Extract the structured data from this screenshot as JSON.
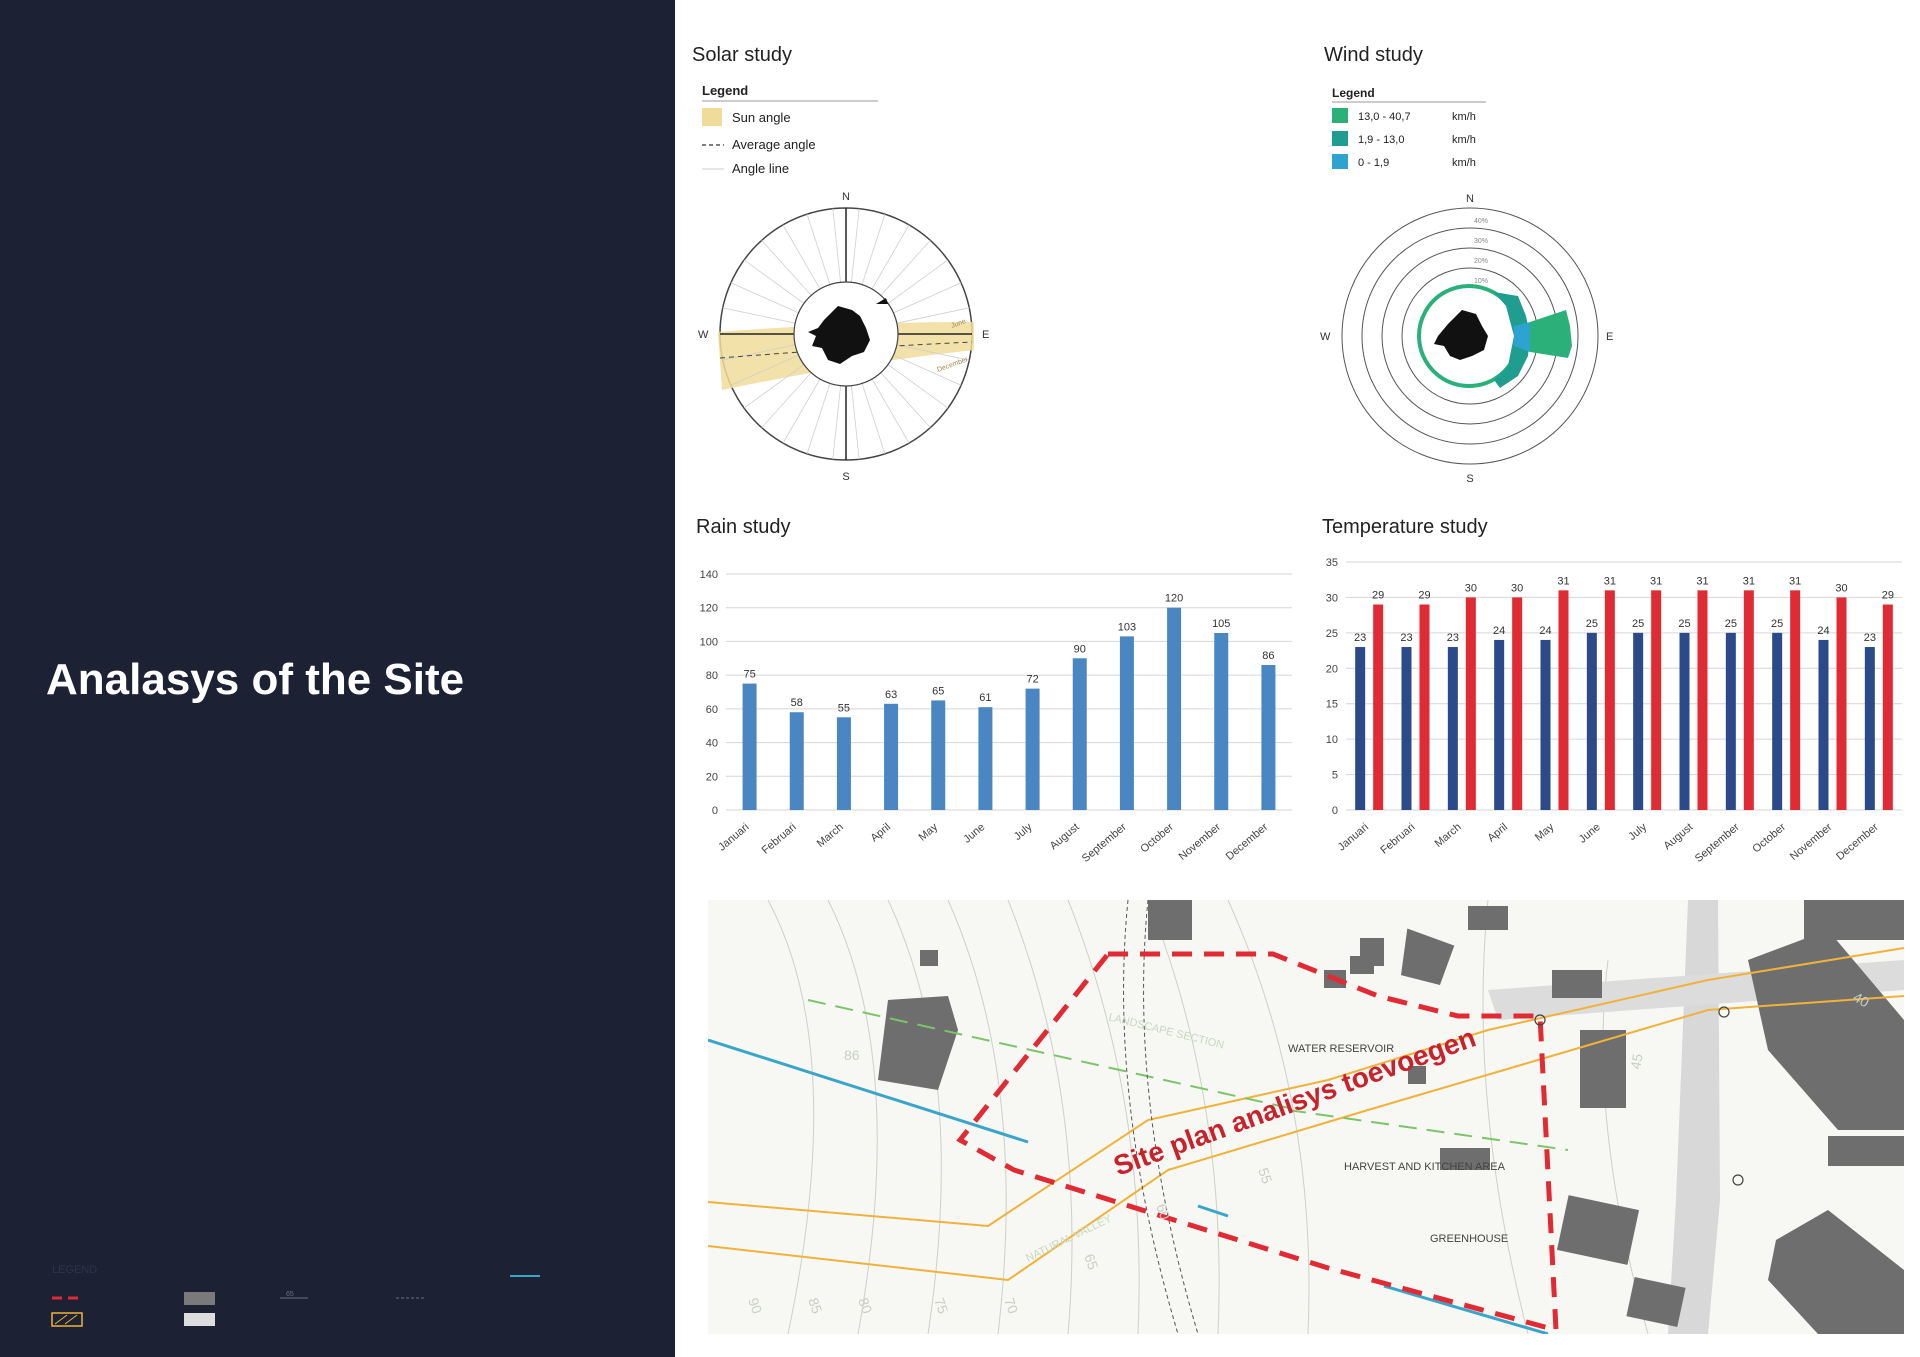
{
  "page": {
    "title": "Analasys of the Site"
  },
  "bottom_legend": {
    "title": "LEGEND",
    "tiny_label": "65"
  },
  "colors": {
    "panel": "#1c2133",
    "rain_bar": "#4a86c2",
    "temp_min": "#2c4a8a",
    "temp_max": "#e02a34",
    "sun_band": "#f0dc9a",
    "wind_high": "#2bb07a",
    "wind_mid": "#1f9e8f",
    "wind_low": "#2ea3cf",
    "site_boundary": "#e02a34",
    "contour_road": "#f0b23a",
    "water_line": "#3aa5c8"
  },
  "solar": {
    "title": "Solar study",
    "legend_title": "Legend",
    "legend": [
      "Sun angle",
      "Average angle",
      "Angle line"
    ],
    "compass": {
      "n": "N",
      "e": "E",
      "s": "S",
      "w": "W"
    },
    "band_labels": [
      "June",
      "December"
    ]
  },
  "wind": {
    "title": "Wind study",
    "legend_title": "Legend",
    "legend": [
      {
        "range": "13,0 - 40,7",
        "unit": "km/h",
        "color_key": "wind_high"
      },
      {
        "range": "1,9 - 13,0",
        "unit": "km/h",
        "color_key": "wind_mid"
      },
      {
        "range": "0 - 1,9",
        "unit": "km/h",
        "color_key": "wind_low"
      }
    ],
    "rings": [
      "40%",
      "30%",
      "20%",
      "10%"
    ],
    "compass": {
      "n": "N",
      "e": "E",
      "s": "S",
      "w": "W"
    }
  },
  "site_plan": {
    "title": "Site plan analisys toevoegen",
    "labels": [
      "WATER RESERVOIR",
      "HARVEST AND KITCHEN AREA",
      "GREENHOUSE",
      "LANDSCAPE SECTION",
      "NATURAL VALLEY"
    ],
    "contours": [
      "90",
      "85",
      "80",
      "75",
      "70",
      "65",
      "60",
      "55",
      "86",
      "45",
      "40"
    ]
  },
  "chart_data": [
    {
      "type": "bar",
      "title": "Rain study",
      "categories": [
        "Januari",
        "Februari",
        "March",
        "April",
        "May",
        "June",
        "July",
        "August",
        "September",
        "October",
        "November",
        "December"
      ],
      "values": [
        75,
        58,
        55,
        63,
        65,
        61,
        72,
        90,
        103,
        120,
        105,
        86
      ],
      "ylim": [
        0,
        140
      ],
      "yticks": [
        0,
        20,
        40,
        60,
        80,
        100,
        120,
        140
      ],
      "grid": true
    },
    {
      "type": "bar",
      "title": "Temperature study",
      "categories": [
        "Januari",
        "Februari",
        "March",
        "April",
        "May",
        "June",
        "July",
        "August",
        "September",
        "October",
        "November",
        "December"
      ],
      "series": [
        {
          "values": [
            23,
            23,
            23,
            24,
            24,
            25,
            25,
            25,
            25,
            25,
            24,
            23
          ]
        },
        {
          "values": [
            29,
            29,
            30,
            30,
            31,
            31,
            31,
            31,
            31,
            31,
            30,
            29
          ]
        }
      ],
      "ylim": [
        0,
        35
      ],
      "yticks": [
        0,
        5,
        10,
        15,
        20,
        25,
        30,
        35
      ],
      "grid": true
    }
  ]
}
